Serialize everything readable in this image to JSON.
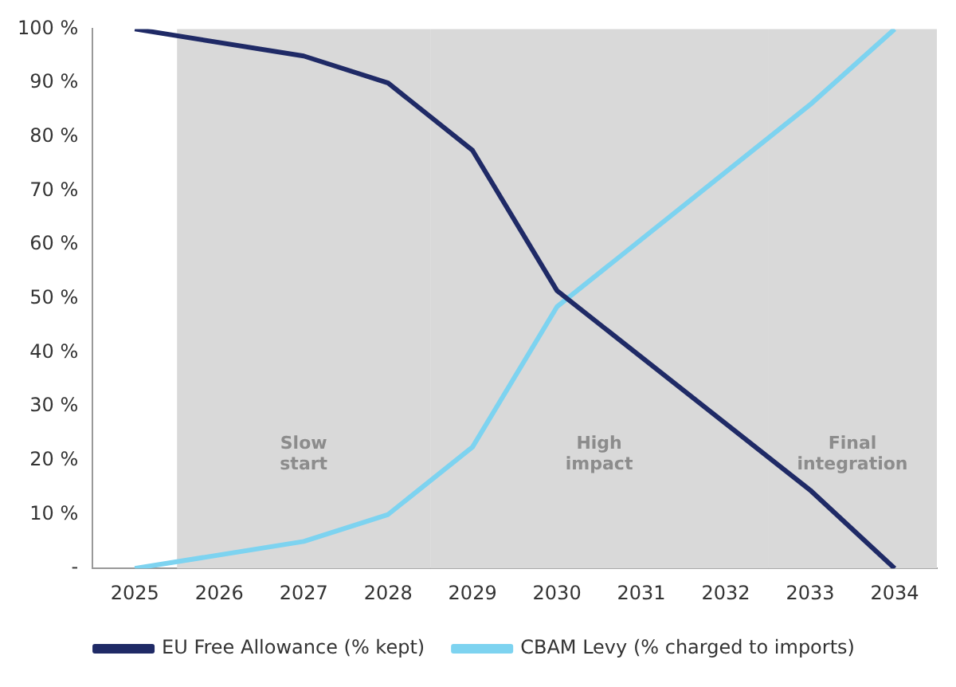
{
  "chart_data": {
    "type": "line",
    "categories": [
      "2025",
      "2026",
      "2027",
      "2028",
      "2029",
      "2030",
      "2031",
      "2032",
      "2033",
      "2034"
    ],
    "series": [
      {
        "name": "EU Free Allowance (% kept)",
        "color": "#1f2a66",
        "values": [
          100,
          null,
          95,
          90,
          77.5,
          51.5,
          null,
          null,
          14.5,
          0
        ]
      },
      {
        "name": "CBAM Levy (% charged to imports)",
        "color": "#7dd3f0",
        "values": [
          0,
          null,
          5,
          10,
          22.5,
          48.5,
          null,
          null,
          86,
          100
        ]
      }
    ],
    "ylim": [
      0,
      100
    ],
    "yticks": [
      {
        "value": 0,
        "label": "-"
      },
      {
        "value": 10,
        "label": "10 %"
      },
      {
        "value": 20,
        "label": "20 %"
      },
      {
        "value": 30,
        "label": "30 %"
      },
      {
        "value": 40,
        "label": "40 %"
      },
      {
        "value": 50,
        "label": "50 %"
      },
      {
        "value": 60,
        "label": "60 %"
      },
      {
        "value": 70,
        "label": "70 %"
      },
      {
        "value": 80,
        "label": "80 %"
      },
      {
        "value": 90,
        "label": "90 %"
      },
      {
        "value": 100,
        "label": "100 %"
      }
    ],
    "bands": [
      {
        "axis": "x",
        "from": "2026",
        "to": "2028",
        "label": "Slow start",
        "color": "#d9d9d9"
      },
      {
        "axis": "x",
        "from": "2029",
        "to": "2032",
        "label": "High impact",
        "color": "#d9d9d9"
      },
      {
        "axis": "x",
        "from": "2033",
        "to": "2034",
        "label": "Final integration",
        "color": "#d9d9d9"
      }
    ],
    "grid": false,
    "legend": "bottom",
    "marker": "none",
    "line_style": "solid"
  }
}
